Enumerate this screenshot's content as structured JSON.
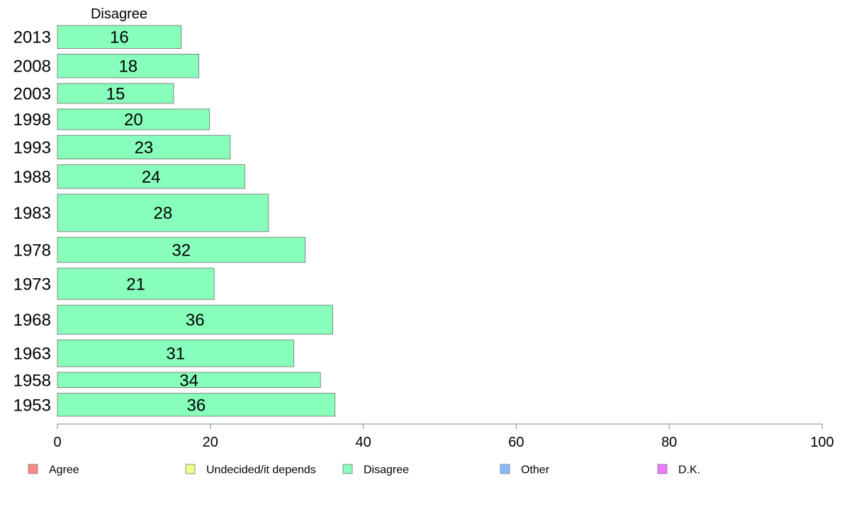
{
  "chart_data": {
    "type": "bar",
    "orientation": "horizontal",
    "panel_title": "Disagree",
    "categories": [
      "2013",
      "2008",
      "2003",
      "1998",
      "1993",
      "1988",
      "1983",
      "1978",
      "1973",
      "1968",
      "1963",
      "1958",
      "1953"
    ],
    "values": [
      16,
      18,
      15,
      20,
      23,
      24,
      28,
      32,
      21,
      36,
      31,
      34,
      36
    ],
    "bar_lengths": [
      16.2,
      18.5,
      15.2,
      19.9,
      22.6,
      24.5,
      27.6,
      32.4,
      20.5,
      36.0,
      30.9,
      34.4,
      36.3
    ],
    "bar_weights": [
      30,
      31,
      26,
      27,
      31,
      31,
      49,
      33,
      41,
      38,
      35,
      20,
      30
    ],
    "xlim": [
      0,
      100
    ],
    "xticks": [
      0,
      20,
      40,
      60,
      80,
      100
    ],
    "grid": false,
    "bar_color": "#88ffbb",
    "legend": {
      "position": "bottom",
      "items": [
        {
          "label": "Agree",
          "color": "#ff8888"
        },
        {
          "label": "Undecided/it depends",
          "color": "#eeff88"
        },
        {
          "label": "Disagree",
          "color": "#88ffbb"
        },
        {
          "label": "Other",
          "color": "#88bbff"
        },
        {
          "label": "D.K.",
          "color": "#ee77ff"
        }
      ]
    }
  }
}
